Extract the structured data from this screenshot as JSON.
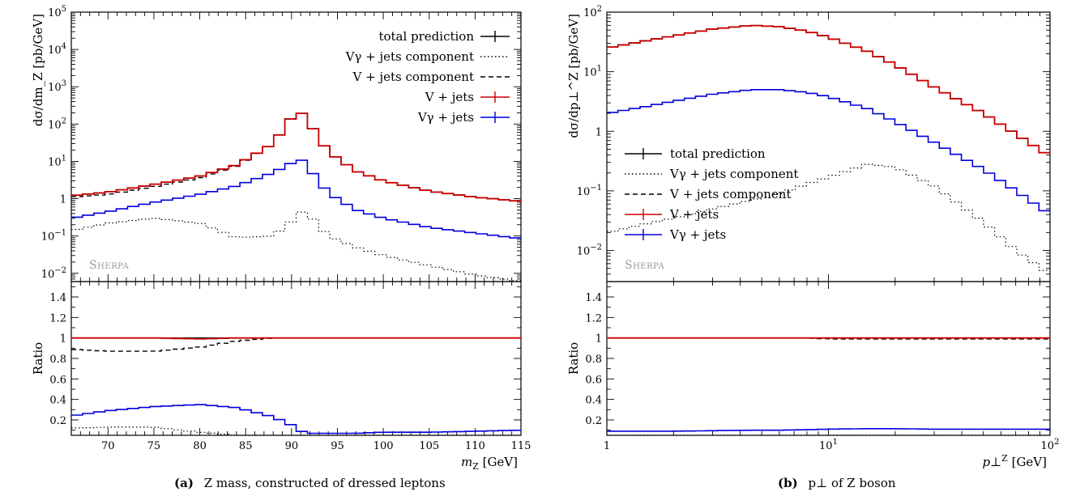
{
  "colors": {
    "red": "#cc0000",
    "blue": "#0000dd",
    "black": "#000000",
    "sherpa": "#999999"
  },
  "watermark": "Sherpa",
  "legend": [
    {
      "label": "total prediction",
      "style": "solid-cross",
      "color": "#000000"
    },
    {
      "label": "Vγ + jets component",
      "style": "dotted",
      "color": "#000000"
    },
    {
      "label": "V + jets component",
      "style": "dashed",
      "color": "#000000"
    },
    {
      "label": "V + jets",
      "style": "solid-cross",
      "color": "#cc0000"
    },
    {
      "label": "Vγ + jets",
      "style": "solid-cross",
      "color": "#0000dd"
    }
  ],
  "chart_data": [
    {
      "type": "line",
      "panel": "a",
      "caption_tag": "(a)",
      "caption_text": "Z mass, constructed of dressed leptons",
      "xlabel": "m_Z [GeV]",
      "ylabel": "dσ/dm_Z [pb/GeV]",
      "ratio_ylabel": "Ratio",
      "xlim": [
        66,
        115
      ],
      "ylim": [
        0.006,
        100000
      ],
      "yscale": "log",
      "ratio_ylim": [
        0.05,
        1.55
      ],
      "x_ticks": [
        70,
        75,
        80,
        85,
        90,
        95,
        100,
        105,
        110,
        115
      ],
      "y_ticks": [
        "10^-2",
        "10^-1",
        "1",
        "10^1",
        "10^2",
        "10^3",
        "10^4",
        "10^5"
      ],
      "ratio_ticks": [
        "0.2",
        "0.4",
        "0.6",
        "0.8",
        "1",
        "1.2",
        "1.4"
      ],
      "legend_position": "top-right",
      "x_knots": [
        66,
        70,
        75,
        80,
        84,
        88,
        90,
        91,
        92,
        94,
        97,
        100,
        105,
        110,
        115
      ],
      "series": [
        {
          "role": "total",
          "values": [
            1.2,
            1.5,
            2.4,
            4.0,
            8.0,
            30,
            150,
            210,
            100,
            18,
            5.5,
            3.0,
            1.6,
            1.1,
            0.85
          ]
        },
        {
          "role": "vgamma_component",
          "values": [
            0.14,
            0.22,
            0.3,
            0.22,
            0.09,
            0.1,
            0.25,
            0.45,
            0.35,
            0.1,
            0.05,
            0.03,
            0.016,
            0.009,
            0.006
          ]
        },
        {
          "role": "vjets_component",
          "values": [
            1.1,
            1.3,
            2.1,
            3.6,
            7.7,
            30,
            150,
            210,
            100,
            18,
            5.5,
            3.0,
            1.6,
            1.1,
            0.85
          ]
        },
        {
          "role": "vjets",
          "values": [
            1.2,
            1.5,
            2.4,
            4.0,
            8.0,
            30,
            150,
            210,
            100,
            18,
            5.5,
            3.0,
            1.6,
            1.1,
            0.85
          ]
        },
        {
          "role": "vgamma_jets",
          "values": [
            0.3,
            0.45,
            0.8,
            1.3,
            2.2,
            5.0,
            9.0,
            11.5,
            6.0,
            1.4,
            0.5,
            0.3,
            0.17,
            0.12,
            0.085
          ]
        }
      ],
      "ratio_series": [
        {
          "role": "total",
          "values": [
            1.0,
            1.0,
            1.0,
            1.0,
            1.0,
            1.0,
            1.0,
            1.0,
            1.0,
            1.0,
            1.0,
            1.0,
            1.0,
            1.0,
            1.0
          ]
        },
        {
          "role": "vgamma_component",
          "values": [
            0.12,
            0.13,
            0.13,
            0.08,
            0.05,
            0.01,
            0.0,
            0.0,
            0.0,
            0.0,
            0.0,
            0.0,
            0.0,
            0.0,
            0.0
          ]
        },
        {
          "role": "vjets_component",
          "values": [
            0.89,
            0.87,
            0.87,
            0.91,
            0.97,
            1.0,
            1.0,
            1.0,
            1.0,
            1.0,
            1.0,
            1.0,
            1.0,
            1.0,
            1.0
          ]
        },
        {
          "role": "vjets",
          "values": [
            1.0,
            1.0,
            1.0,
            0.99,
            1.0,
            1.0,
            1.0,
            1.0,
            1.0,
            1.0,
            1.0,
            1.0,
            1.0,
            1.0,
            1.0
          ]
        },
        {
          "role": "vgamma_jets",
          "values": [
            0.24,
            0.29,
            0.33,
            0.35,
            0.32,
            0.23,
            0.15,
            0.09,
            0.07,
            0.07,
            0.07,
            0.08,
            0.08,
            0.09,
            0.1
          ]
        }
      ]
    },
    {
      "type": "line",
      "panel": "b",
      "caption_tag": "(b)",
      "caption_text": "p⊥ of Z boson",
      "xlabel": "p⊥^Z [GeV]",
      "ylabel": "dσ/dp⊥^Z [pb/GeV]",
      "ratio_ylabel": "Ratio",
      "xlim": [
        1,
        100
      ],
      "xscale": "log",
      "ylim": [
        0.003,
        100
      ],
      "yscale": "log",
      "ratio_ylim": [
        0.05,
        1.55
      ],
      "x_ticks": [
        "1",
        "10^1",
        "10^2"
      ],
      "y_ticks": [
        "10^-2",
        "10^-1",
        "1",
        "10^1",
        "10^2"
      ],
      "ratio_ticks": [
        "0.2",
        "0.4",
        "0.6",
        "0.8",
        "1",
        "1.2",
        "1.4"
      ],
      "legend_position": "center-left",
      "x_knots": [
        1,
        1.5,
        2,
        3,
        4.5,
        6,
        8,
        10,
        15,
        20,
        30,
        50,
        70,
        100
      ],
      "series": [
        {
          "role": "total",
          "values": [
            25,
            33,
            40,
            52,
            60,
            57,
            48,
            38,
            22,
            13,
            5.5,
            2.0,
            0.9,
            0.38
          ]
        },
        {
          "role": "vgamma_component",
          "values": [
            0.02,
            0.028,
            0.035,
            0.05,
            0.07,
            0.09,
            0.13,
            0.17,
            0.28,
            0.25,
            0.12,
            0.03,
            0.01,
            0.004
          ]
        },
        {
          "role": "vjets_component",
          "values": [
            25,
            33,
            40,
            52,
            60,
            57,
            48,
            38,
            22,
            13,
            5.5,
            2.0,
            0.9,
            0.38
          ]
        },
        {
          "role": "vjets",
          "values": [
            25,
            33,
            40,
            52,
            60,
            57,
            48,
            38,
            22,
            13,
            5.5,
            2.0,
            0.9,
            0.38
          ]
        },
        {
          "role": "vgamma_jets",
          "values": [
            2.0,
            2.6,
            3.2,
            4.2,
            5.0,
            5.0,
            4.5,
            3.8,
            2.4,
            1.45,
            0.65,
            0.23,
            0.1,
            0.04
          ]
        }
      ],
      "ratio_series": [
        {
          "role": "total",
          "values": [
            1.0,
            1.0,
            1.0,
            1.0,
            1.0,
            1.0,
            1.0,
            1.0,
            1.0,
            1.0,
            1.0,
            1.0,
            1.0,
            1.0
          ]
        },
        {
          "role": "vgamma_component",
          "values": [
            0.0,
            0.0,
            0.0,
            0.0,
            0.0,
            0.0,
            0.0,
            0.0,
            0.0,
            0.0,
            0.0,
            0.0,
            0.0,
            0.0
          ]
        },
        {
          "role": "vjets_component",
          "values": [
            1.0,
            1.0,
            1.0,
            1.0,
            1.0,
            1.0,
            1.0,
            0.99,
            0.99,
            0.99,
            0.99,
            0.99,
            0.99,
            0.99
          ]
        },
        {
          "role": "vjets",
          "values": [
            1.0,
            1.0,
            1.0,
            1.0,
            1.0,
            1.0,
            1.0,
            1.0,
            1.0,
            1.0,
            1.0,
            1.0,
            1.0,
            1.0
          ]
        },
        {
          "role": "vgamma_jets",
          "values": [
            0.09,
            0.09,
            0.09,
            0.095,
            0.1,
            0.1,
            0.105,
            0.11,
            0.115,
            0.115,
            0.11,
            0.11,
            0.11,
            0.11
          ]
        }
      ]
    }
  ]
}
